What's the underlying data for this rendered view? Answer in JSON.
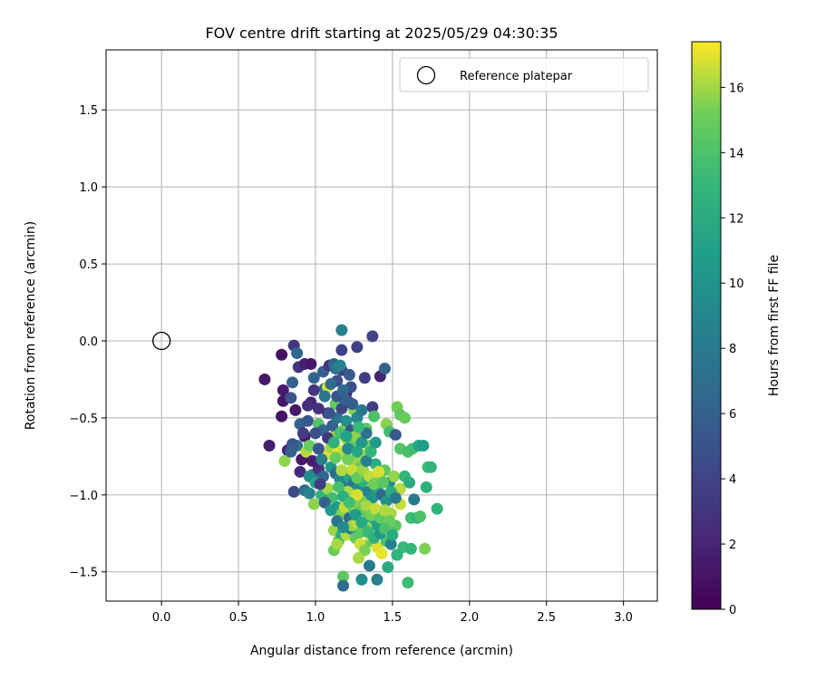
{
  "chart_data": {
    "type": "scatter",
    "title": "FOV centre drift starting at 2025/05/29 04:30:35",
    "xlabel": "Angular distance from reference (arcmin)",
    "ylabel": "Rotation from reference (arcmin)",
    "xlim": [
      -0.36,
      3.22
    ],
    "ylim": [
      -1.69,
      1.89
    ],
    "xticks": [
      0.0,
      0.5,
      1.0,
      1.5,
      2.0,
      2.5,
      3.0
    ],
    "xtick_labels": [
      "0.0",
      "0.5",
      "1.0",
      "1.5",
      "2.0",
      "2.5",
      "3.0"
    ],
    "yticks": [
      -1.5,
      -1.0,
      -0.5,
      0.0,
      0.5,
      1.0,
      1.5
    ],
    "ytick_labels": [
      "−1.5",
      "−1.0",
      "−0.5",
      "0.0",
      "0.5",
      "1.0",
      "1.5"
    ],
    "grid": true,
    "legend": {
      "placement": "top-right",
      "entries": [
        {
          "label": "Reference platepar",
          "marker": "open-circle"
        }
      ]
    },
    "reference_point": {
      "x": 0.0,
      "y": 0.0
    },
    "colorbar": {
      "label": "Hours from first FF file",
      "range": [
        0,
        17.4
      ],
      "ticks": [
        0,
        2,
        4,
        6,
        8,
        10,
        12,
        14,
        16
      ],
      "tick_labels": [
        "0",
        "2",
        "4",
        "6",
        "8",
        "10",
        "12",
        "14",
        "16"
      ],
      "colormap": "viridis"
    },
    "points": [
      [
        0.67,
        -0.25,
        1.2
      ],
      [
        0.78,
        -0.09,
        1.0
      ],
      [
        0.79,
        -0.32,
        1.5
      ],
      [
        0.78,
        -0.49,
        1.0
      ],
      [
        0.79,
        -0.39,
        1.1
      ],
      [
        0.7,
        -0.68,
        1.6
      ],
      [
        0.82,
        -0.71,
        1.8
      ],
      [
        0.86,
        -0.03,
        3.2
      ],
      [
        0.88,
        -0.08,
        6.5
      ],
      [
        0.85,
        -0.27,
        6.0
      ],
      [
        0.89,
        -0.17,
        3.0
      ],
      [
        0.93,
        -0.15,
        1.6
      ],
      [
        0.97,
        -0.15,
        1.2
      ],
      [
        0.99,
        -0.24,
        6.4
      ],
      [
        0.84,
        -0.37,
        5.2
      ],
      [
        0.87,
        -0.45,
        1.3
      ],
      [
        0.9,
        -0.54,
        6.2
      ],
      [
        0.88,
        -0.68,
        7.0
      ],
      [
        0.86,
        -0.98,
        4.5
      ],
      [
        0.85,
        -0.67,
        5.5
      ],
      [
        0.93,
        -0.62,
        1.2
      ],
      [
        0.95,
        -0.52,
        5.4
      ],
      [
        0.97,
        -0.4,
        2.0
      ],
      [
        0.99,
        -0.32,
        3.2
      ],
      [
        1.02,
        -0.44,
        2.8
      ],
      [
        1.05,
        -0.2,
        5.8
      ],
      [
        1.06,
        -0.31,
        6.4
      ],
      [
        1.09,
        -0.16,
        3.0
      ],
      [
        1.12,
        -0.15,
        6.3
      ],
      [
        1.14,
        -0.26,
        4.5
      ],
      [
        1.17,
        -0.19,
        3.7
      ],
      [
        1.17,
        -0.06,
        3.9
      ],
      [
        1.17,
        0.07,
        8.5
      ],
      [
        1.2,
        -0.34,
        2.2
      ],
      [
        1.23,
        -0.3,
        4.8
      ],
      [
        1.27,
        -0.04,
        3.7
      ],
      [
        1.32,
        -0.24,
        3.6
      ],
      [
        1.37,
        0.03,
        4.0
      ],
      [
        1.42,
        -0.23,
        1.9
      ],
      [
        1.45,
        -0.18,
        6.2
      ],
      [
        1.08,
        -0.3,
        16.8
      ],
      [
        1.02,
        -0.54,
        14.2
      ],
      [
        1.08,
        -0.47,
        2.5
      ],
      [
        1.13,
        -0.41,
        14.8
      ],
      [
        1.18,
        -0.58,
        15.4
      ],
      [
        1.22,
        -0.4,
        2.3
      ],
      [
        1.25,
        -0.45,
        15.5
      ],
      [
        1.33,
        -0.57,
        14.6
      ],
      [
        1.37,
        -0.43,
        3.5
      ],
      [
        1.38,
        -0.49,
        14.0
      ],
      [
        1.46,
        -0.54,
        15.6
      ],
      [
        1.48,
        -0.59,
        13.5
      ],
      [
        1.53,
        -0.43,
        15.2
      ],
      [
        1.55,
        -0.48,
        14.6
      ],
      [
        1.58,
        -0.5,
        15.0
      ],
      [
        1.52,
        -0.61,
        5.5
      ],
      [
        1.55,
        -0.7,
        14.3
      ],
      [
        1.6,
        -0.72,
        13.9
      ],
      [
        1.63,
        -0.7,
        13.6
      ],
      [
        1.67,
        -0.68,
        11.5
      ],
      [
        1.7,
        -0.68,
        10.8
      ],
      [
        1.73,
        -0.82,
        13.4
      ],
      [
        1.72,
        -0.95,
        12.5
      ],
      [
        1.75,
        -0.82,
        12.8
      ],
      [
        1.79,
        -1.09,
        12.6
      ],
      [
        0.8,
        -0.78,
        15.7
      ],
      [
        0.84,
        -0.72,
        6.0
      ],
      [
        0.91,
        -0.77,
        1.3
      ],
      [
        0.94,
        -0.72,
        16.3
      ],
      [
        0.96,
        -0.68,
        15.0
      ],
      [
        0.98,
        -0.87,
        7.2
      ],
      [
        1.02,
        -0.83,
        2.5
      ],
      [
        1.05,
        -0.88,
        6.6
      ],
      [
        1.07,
        -0.74,
        16.8
      ],
      [
        1.1,
        -0.69,
        15.9
      ],
      [
        1.12,
        -0.62,
        16.2
      ],
      [
        1.15,
        -0.71,
        17.0
      ],
      [
        1.18,
        -0.73,
        16.4
      ],
      [
        1.2,
        -0.64,
        16.7
      ],
      [
        1.23,
        -0.68,
        14.5
      ],
      [
        1.26,
        -0.78,
        16.0
      ],
      [
        1.29,
        -0.82,
        15.1
      ],
      [
        1.32,
        -0.74,
        16.2
      ],
      [
        1.35,
        -0.68,
        15.3
      ],
      [
        1.39,
        -0.8,
        12.3
      ],
      [
        1.42,
        -0.88,
        15.6
      ],
      [
        1.45,
        -0.84,
        14.7
      ],
      [
        1.48,
        -0.92,
        9.5
      ],
      [
        1.51,
        -0.88,
        15.8
      ],
      [
        1.55,
        -0.96,
        16.4
      ],
      [
        1.58,
        -0.88,
        13.0
      ],
      [
        1.61,
        -0.92,
        12.2
      ],
      [
        1.64,
        -1.03,
        8.0
      ],
      [
        1.62,
        -1.15,
        13.5
      ],
      [
        1.66,
        -1.15,
        12.8
      ],
      [
        0.93,
        -0.97,
        7.0
      ],
      [
        0.96,
        -0.99,
        9.0
      ],
      [
        0.99,
        -1.06,
        15.7
      ],
      [
        1.04,
        -1.0,
        12.8
      ],
      [
        1.08,
        -0.96,
        16.0
      ],
      [
        1.11,
        -1.02,
        13.5
      ],
      [
        1.14,
        -1.08,
        11.0
      ],
      [
        1.16,
        -1.13,
        15.5
      ],
      [
        1.19,
        -1.08,
        16.5
      ],
      [
        1.22,
        -1.15,
        6.5
      ],
      [
        1.25,
        -1.1,
        14.2
      ],
      [
        1.28,
        -1.03,
        16.9
      ],
      [
        1.31,
        -1.05,
        15.2
      ],
      [
        1.34,
        -1.12,
        14.1
      ],
      [
        1.37,
        -1.17,
        12.2
      ],
      [
        1.4,
        -1.2,
        11.0
      ],
      [
        1.43,
        -1.14,
        15.9
      ],
      [
        1.46,
        -1.18,
        13.2
      ],
      [
        1.49,
        -1.12,
        16.1
      ],
      [
        1.52,
        -1.2,
        14.5
      ],
      [
        1.12,
        -1.23,
        15.9
      ],
      [
        1.15,
        -1.3,
        14.4
      ],
      [
        1.17,
        -1.26,
        12.0
      ],
      [
        1.2,
        -1.26,
        16.3
      ],
      [
        1.23,
        -1.22,
        8.2
      ],
      [
        1.26,
        -1.28,
        14.6
      ],
      [
        1.29,
        -1.32,
        16.7
      ],
      [
        1.32,
        -1.36,
        15.4
      ],
      [
        1.36,
        -1.3,
        14.8
      ],
      [
        1.4,
        -1.34,
        16.9
      ],
      [
        1.43,
        -1.38,
        17.1
      ],
      [
        1.46,
        -1.3,
        14.0
      ],
      [
        1.49,
        -1.32,
        8.5
      ],
      [
        1.53,
        -1.39,
        11.5
      ],
      [
        1.57,
        -1.34,
        13.2
      ],
      [
        1.12,
        -1.36,
        15.0
      ],
      [
        1.14,
        -1.32,
        16.1
      ],
      [
        1.18,
        -1.53,
        14.6
      ],
      [
        1.18,
        -1.59,
        7.0
      ],
      [
        1.28,
        -1.41,
        16.1
      ],
      [
        1.3,
        -1.55,
        9.5
      ],
      [
        1.35,
        -1.46,
        8.0
      ],
      [
        1.4,
        -1.55,
        8.6
      ],
      [
        1.47,
        -1.47,
        12.0
      ],
      [
        1.53,
        -1.39,
        12.6
      ],
      [
        1.6,
        -1.57,
        13.4
      ],
      [
        1.62,
        -1.35,
        12.8
      ],
      [
        1.71,
        -1.35,
        15.4
      ],
      [
        1.68,
        -1.14,
        14.0
      ],
      [
        1.55,
        -1.06,
        16.6
      ],
      [
        1.05,
        -0.58,
        6.6
      ],
      [
        1.08,
        -0.63,
        3.3
      ],
      [
        1.11,
        -0.55,
        6.0
      ],
      [
        1.14,
        -0.5,
        7.5
      ],
      [
        1.17,
        -0.44,
        4.2
      ],
      [
        1.2,
        -0.52,
        9.8
      ],
      [
        1.23,
        -0.58,
        5.4
      ],
      [
        1.26,
        -0.62,
        15.7
      ],
      [
        1.3,
        -0.66,
        10.5
      ],
      [
        1.33,
        -0.6,
        7.2
      ],
      [
        1.1,
        -0.82,
        10.5
      ],
      [
        1.13,
        -0.86,
        6.8
      ],
      [
        1.16,
        -0.9,
        9.2
      ],
      [
        1.19,
        -0.95,
        8.5
      ],
      [
        1.22,
        -0.88,
        11.8
      ],
      [
        1.25,
        -0.92,
        7.5
      ],
      [
        1.28,
        -0.96,
        9.6
      ],
      [
        1.31,
        -0.91,
        12.6
      ],
      [
        1.34,
        -0.98,
        8.8
      ],
      [
        1.37,
        -1.02,
        10.2
      ],
      [
        1.4,
        -0.96,
        11.4
      ],
      [
        1.43,
        -1.0,
        6.6
      ],
      [
        1.46,
        -1.04,
        9.9
      ],
      [
        1.49,
        -0.98,
        12.2
      ],
      [
        1.52,
        -1.02,
        7.8
      ],
      [
        1.06,
        -0.36,
        7.8
      ],
      [
        1.1,
        -0.28,
        6.8
      ],
      [
        1.13,
        -0.18,
        7.6
      ],
      [
        1.16,
        -0.16,
        8.6
      ],
      [
        1.19,
        -0.38,
        6.2
      ],
      [
        1.22,
        -0.22,
        5.6
      ],
      [
        1.0,
        -0.6,
        4.8
      ],
      [
        1.02,
        -0.7,
        5.3
      ],
      [
        0.98,
        -0.78,
        1.6
      ],
      [
        1.04,
        -0.77,
        8.2
      ],
      [
        1.13,
        -0.76,
        14.9
      ],
      [
        1.17,
        -0.84,
        16.2
      ],
      [
        1.21,
        -0.77,
        15.3
      ],
      [
        1.24,
        -0.84,
        16.6
      ],
      [
        1.27,
        -0.89,
        14.8
      ],
      [
        1.31,
        -0.84,
        15.9
      ],
      [
        1.35,
        -0.88,
        16.4
      ],
      [
        1.38,
        -0.93,
        15.2
      ],
      [
        1.41,
        -0.85,
        16.8
      ],
      [
        1.44,
        -0.92,
        14.5
      ],
      [
        1.21,
        -0.98,
        16.2
      ],
      [
        1.24,
        -1.06,
        15.6
      ],
      [
        1.27,
        -1.0,
        16.8
      ],
      [
        1.3,
        -1.1,
        14.9
      ],
      [
        1.33,
        -1.07,
        16.1
      ],
      [
        1.36,
        -1.13,
        15.3
      ],
      [
        1.39,
        -1.09,
        16.6
      ],
      [
        1.42,
        -1.15,
        14.7
      ],
      [
        1.45,
        -1.1,
        16.2
      ],
      [
        1.48,
        -1.17,
        15.0
      ],
      [
        1.24,
        -1.2,
        15.8
      ],
      [
        1.27,
        -1.18,
        16.4
      ],
      [
        1.3,
        -1.24,
        14.6
      ],
      [
        1.33,
        -1.21,
        15.9
      ],
      [
        1.36,
        -1.27,
        16.7
      ],
      [
        1.21,
        -0.7,
        9.2
      ],
      [
        1.27,
        -0.72,
        11.6
      ],
      [
        1.33,
        -0.78,
        8.4
      ],
      [
        1.36,
        -0.72,
        12.8
      ],
      [
        1.39,
        -0.66,
        10.6
      ],
      [
        1.15,
        -0.95,
        13.8
      ],
      [
        1.18,
        -1.01,
        12.4
      ],
      [
        1.22,
        -1.05,
        13.6
      ],
      [
        1.26,
        -1.13,
        10.8
      ],
      [
        1.3,
        -1.18,
        11.8
      ],
      [
        1.34,
        -1.24,
        13.2
      ],
      [
        1.38,
        -1.28,
        12.6
      ],
      [
        1.42,
        -1.25,
        10.4
      ],
      [
        1.45,
        -1.22,
        13.9
      ],
      [
        1.5,
        -1.26,
        12.0
      ],
      [
        1.09,
        -0.47,
        5.0
      ],
      [
        1.14,
        -0.36,
        5.2
      ],
      [
        1.18,
        -0.32,
        6.8
      ],
      [
        1.24,
        -0.41,
        5.9
      ],
      [
        1.27,
        -0.5,
        8.9
      ],
      [
        1.3,
        -0.45,
        7.9
      ],
      [
        1.12,
        -0.66,
        12.6
      ],
      [
        1.16,
        -0.6,
        13.8
      ],
      [
        1.2,
        -0.62,
        11.2
      ],
      [
        1.28,
        -0.56,
        13.1
      ],
      [
        0.95,
        -0.42,
        2.6
      ],
      [
        0.92,
        -0.6,
        3.5
      ],
      [
        0.9,
        -0.85,
        2.4
      ],
      [
        0.96,
        -0.88,
        9.5
      ],
      [
        1.0,
        -0.92,
        11.2
      ],
      [
        1.03,
        -0.93,
        3.6
      ],
      [
        1.06,
        -1.05,
        6.1
      ],
      [
        1.1,
        -1.1,
        10.6
      ],
      [
        1.14,
        -1.17,
        7.7
      ],
      [
        1.18,
        -1.21,
        9.4
      ]
    ]
  }
}
